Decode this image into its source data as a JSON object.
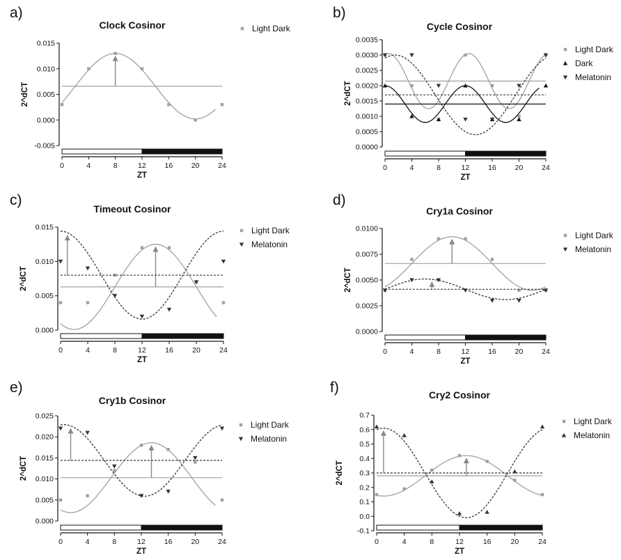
{
  "chart_data": [
    {
      "panel": "a)",
      "title": "Clock Cosinor",
      "type": "line",
      "xlabel": "ZT",
      "ylabel": "2^dCT",
      "xlim": [
        0,
        24
      ],
      "xticks": [
        0,
        4,
        8,
        12,
        16,
        20,
        24
      ],
      "ylim": [
        -0.005,
        0.015
      ],
      "yticks": [
        -0.005,
        0.0,
        0.005,
        0.01,
        0.015
      ],
      "ytick_labels": [
        "-0.005",
        "0.000",
        "0.005",
        "0.010",
        "0.015"
      ],
      "light_dark_bar": {
        "light": [
          0,
          12
        ],
        "dark": [
          12,
          24
        ]
      },
      "series": [
        {
          "name": "Light Dark",
          "marker": "square",
          "color": "#a0a0a0",
          "dash": "",
          "x": [
            0,
            4,
            8,
            12,
            16,
            20,
            24
          ],
          "y": [
            0.003,
            0.01,
            0.013,
            0.01,
            0.003,
            0.0,
            0.003
          ],
          "fit": {
            "mesor": 0.0066,
            "amplitude": 0.0064,
            "peak": 8,
            "period": 24,
            "end": 23
          },
          "arrow_x": 8
        }
      ]
    },
    {
      "panel": "b)",
      "title": "Cycle Cosinor",
      "type": "line",
      "xlabel": "ZT",
      "ylabel": "2^dCT",
      "xlim": [
        0,
        24
      ],
      "xticks": [
        0,
        4,
        8,
        12,
        16,
        20,
        24
      ],
      "ylim": [
        0,
        0.0035
      ],
      "yticks": [
        0,
        0.0005,
        0.001,
        0.0015,
        0.002,
        0.0025,
        0.003,
        0.0035
      ],
      "ytick_labels": [
        "0.0000",
        "0.0005",
        "0.0010",
        "0.0015",
        "0.0020",
        "0.0025",
        "0.0030",
        "0.0035"
      ],
      "light_dark_bar": {
        "light": [
          0,
          12
        ],
        "dark": [
          12,
          24
        ]
      },
      "series": [
        {
          "name": "Light Dark",
          "marker": "square",
          "color": "#a0a0a0",
          "dash": "",
          "x": [
            0,
            4,
            8,
            12,
            16,
            20,
            24
          ],
          "y": [
            0.003,
            0.002,
            0.0009,
            0.003,
            0.002,
            0.001,
            0.003
          ],
          "fit": {
            "mesor": 0.00215,
            "amplitude": 0.0009,
            "peak": 0.5,
            "period": 12,
            "end": 24
          }
        },
        {
          "name": "Dark",
          "marker": "triangle-up",
          "color": "#111111",
          "dash": "",
          "x": [
            0,
            4,
            8,
            12,
            16,
            20,
            24
          ],
          "y": [
            0.002,
            0.001,
            0.0009,
            0.002,
            0.0009,
            0.0009,
            0.002
          ],
          "fit": {
            "mesor": 0.0014,
            "amplitude": 0.0006,
            "peak": 0,
            "period": 12,
            "end": 23
          }
        },
        {
          "name": "Melatonin",
          "marker": "triangle-down",
          "color": "#333333",
          "dash": "3,2",
          "x": [
            0,
            4,
            8,
            12,
            16,
            20,
            24
          ],
          "y": [
            0.003,
            0.003,
            0.002,
            0.0009,
            0.0009,
            0.002,
            0.003
          ],
          "fit": {
            "mesor": 0.0017,
            "amplitude": 0.0013,
            "peak": 1.5,
            "period": 24,
            "end": 24
          }
        }
      ]
    },
    {
      "panel": "c)",
      "title": "Timeout Cosinor",
      "type": "line",
      "xlabel": "ZT",
      "ylabel": "2^dCT",
      "xlim": [
        0,
        24
      ],
      "xticks": [
        0,
        4,
        8,
        12,
        16,
        20,
        24
      ],
      "ylim": [
        0,
        0.015
      ],
      "yticks": [
        0,
        0.005,
        0.01,
        0.015
      ],
      "ytick_labels": [
        "0.000",
        "0.005",
        "0.010",
        "0.015"
      ],
      "light_dark_bar": {
        "light": [
          0,
          12
        ],
        "dark": [
          12,
          24
        ]
      },
      "series": [
        {
          "name": "Light Dark",
          "marker": "square",
          "color": "#a0a0a0",
          "dash": "",
          "x": [
            0,
            4,
            8,
            12,
            16,
            20,
            24
          ],
          "y": [
            0.004,
            0.004,
            0.008,
            0.012,
            0.012,
            0.007,
            0.004
          ],
          "fit": {
            "mesor": 0.0063,
            "amplitude": 0.0062,
            "peak": 14,
            "period": 24,
            "end": 23
          },
          "arrow_x": 14
        },
        {
          "name": "Melatonin",
          "marker": "triangle-down",
          "color": "#333333",
          "dash": "3,2",
          "x": [
            0,
            4,
            8,
            12,
            16,
            20,
            24
          ],
          "y": [
            0.01,
            0.009,
            0.005,
            0.002,
            0.003,
            0.007,
            0.01
          ],
          "fit": {
            "mesor": 0.008,
            "amplitude": 0.0064,
            "peak": 0,
            "period": 24,
            "end": 24
          },
          "arrow_x": 1
        }
      ]
    },
    {
      "panel": "d)",
      "title": "Cry1a Cosinor",
      "type": "line",
      "xlabel": "ZT",
      "ylabel": "2^dCT",
      "xlim": [
        0,
        24
      ],
      "xticks": [
        0,
        4,
        8,
        12,
        16,
        20,
        24
      ],
      "ylim": [
        0,
        0.01
      ],
      "yticks": [
        0,
        0.0025,
        0.005,
        0.0075,
        0.01
      ],
      "ytick_labels": [
        "0.0000",
        "0.0025",
        "0.0050",
        "0.0075",
        "0.0100"
      ],
      "light_dark_bar": {
        "light": [
          0,
          12
        ],
        "dark": [
          12,
          24
        ]
      },
      "series": [
        {
          "name": "Light Dark",
          "marker": "square",
          "color": "#a0a0a0",
          "dash": "",
          "x": [
            0,
            4,
            8,
            12,
            16,
            20,
            24
          ],
          "y": [
            0.004,
            0.007,
            0.009,
            0.009,
            0.007,
            0.004,
            0.004
          ],
          "fit": {
            "mesor": 0.0066,
            "amplitude": 0.0026,
            "peak": 10,
            "period": 24,
            "end": 24
          },
          "arrow_x": 10
        },
        {
          "name": "Melatonin",
          "marker": "triangle-down",
          "color": "#333333",
          "dash": "3,2",
          "x": [
            0,
            4,
            8,
            12,
            16,
            20,
            24
          ],
          "y": [
            0.004,
            0.005,
            0.005,
            0.004,
            0.003,
            0.003,
            0.004
          ],
          "fit": {
            "mesor": 0.0041,
            "amplitude": 0.001,
            "peak": 6,
            "period": 24,
            "end": 24
          },
          "arrow_x": 7
        }
      ]
    },
    {
      "panel": "e)",
      "title": "Cry1b Cosinor",
      "type": "line",
      "xlabel": "ZT",
      "ylabel": "2^dCT",
      "xlim": [
        0,
        24
      ],
      "xticks": [
        0,
        4,
        8,
        12,
        16,
        20,
        24
      ],
      "ylim": [
        0,
        0.025
      ],
      "yticks": [
        0,
        0.005,
        0.01,
        0.015,
        0.02,
        0.025
      ],
      "ytick_labels": [
        "0.000",
        "0.005",
        "0.010",
        "0.015",
        "0.020",
        "0.025"
      ],
      "light_dark_bar": {
        "light": [
          0,
          12
        ],
        "dark": [
          12,
          24
        ]
      },
      "series": [
        {
          "name": "Light Dark",
          "marker": "square",
          "color": "#a0a0a0",
          "dash": "",
          "x": [
            0,
            4,
            8,
            12,
            16,
            20,
            24
          ],
          "y": [
            0.005,
            0.006,
            0.012,
            0.018,
            0.017,
            0.014,
            0.005
          ],
          "fit": {
            "mesor": 0.0103,
            "amplitude": 0.0083,
            "peak": 13.5,
            "period": 24,
            "end": 23
          },
          "arrow_x": 13.5
        },
        {
          "name": "Melatonin",
          "marker": "triangle-down",
          "color": "#333333",
          "dash": "3,2",
          "x": [
            0,
            4,
            8,
            12,
            16,
            20,
            24
          ],
          "y": [
            0.022,
            0.021,
            0.013,
            0.006,
            0.007,
            0.015,
            0.022
          ],
          "fit": {
            "mesor": 0.0144,
            "amplitude": 0.0085,
            "peak": 0.5,
            "period": 24,
            "end": 24
          },
          "arrow_x": 1.5
        }
      ]
    },
    {
      "panel": "f)",
      "title": "Cry2 Cosinor",
      "type": "line",
      "xlabel": "ZT",
      "ylabel": "2^dCT",
      "xlim": [
        0,
        24
      ],
      "xticks": [
        0,
        4,
        8,
        12,
        16,
        20,
        24
      ],
      "ylim": [
        -0.1,
        0.7
      ],
      "yticks": [
        -0.1,
        0.0,
        0.1,
        0.2,
        0.3,
        0.4,
        0.5,
        0.6,
        0.7
      ],
      "ytick_labels": [
        "-0.1",
        "0.0",
        "0.1",
        "0.2",
        "0.3",
        "0.4",
        "0.5",
        "0.6",
        "0.7"
      ],
      "light_dark_bar": {
        "light": [
          0,
          12
        ],
        "dark": [
          12,
          24
        ]
      },
      "series": [
        {
          "name": "Light Dark",
          "marker": "square",
          "color": "#a0a0a0",
          "dash": "",
          "x": [
            0,
            4,
            8,
            12,
            16,
            20,
            24
          ],
          "y": [
            0.15,
            0.19,
            0.32,
            0.42,
            0.38,
            0.25,
            0.15
          ],
          "fit": {
            "mesor": 0.28,
            "amplitude": 0.14,
            "peak": 13,
            "period": 24,
            "end": 24
          },
          "arrow_x": 13
        },
        {
          "name": "Melatonin",
          "marker": "triangle-up",
          "color": "#333333",
          "dash": "3,2",
          "x": [
            0,
            4,
            8,
            12,
            16,
            20,
            24
          ],
          "y": [
            0.62,
            0.56,
            0.24,
            0.02,
            0.03,
            0.31,
            0.62
          ],
          "fit": {
            "mesor": 0.3,
            "amplitude": 0.31,
            "peak": 1,
            "period": 24,
            "end": 24
          },
          "arrow_x": 1
        }
      ]
    }
  ]
}
